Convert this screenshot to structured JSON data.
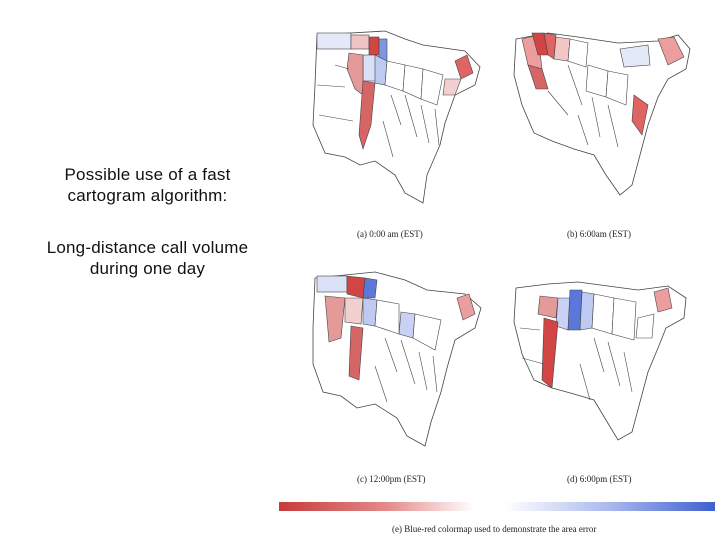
{
  "slide": {
    "heading": "Possible use of a fast cartogram algorithm:",
    "body": "Long-distance call volume during one day"
  },
  "figure": {
    "panels": [
      {
        "caption": "(a) 0:00 am (EST)"
      },
      {
        "caption": "(b) 6:00am (EST)"
      },
      {
        "caption": "(c) 12:00pm (EST)"
      },
      {
        "caption": "(d) 6:00pm (EST)"
      }
    ],
    "colormap_caption": "(e) Blue-red colormap used to demonstrate the area error",
    "colors": {
      "red": "#d24545",
      "light_red": "#efb0b0",
      "blue": "#5b78d8",
      "light_blue": "#d5dcf5",
      "outline": "#333333"
    }
  }
}
